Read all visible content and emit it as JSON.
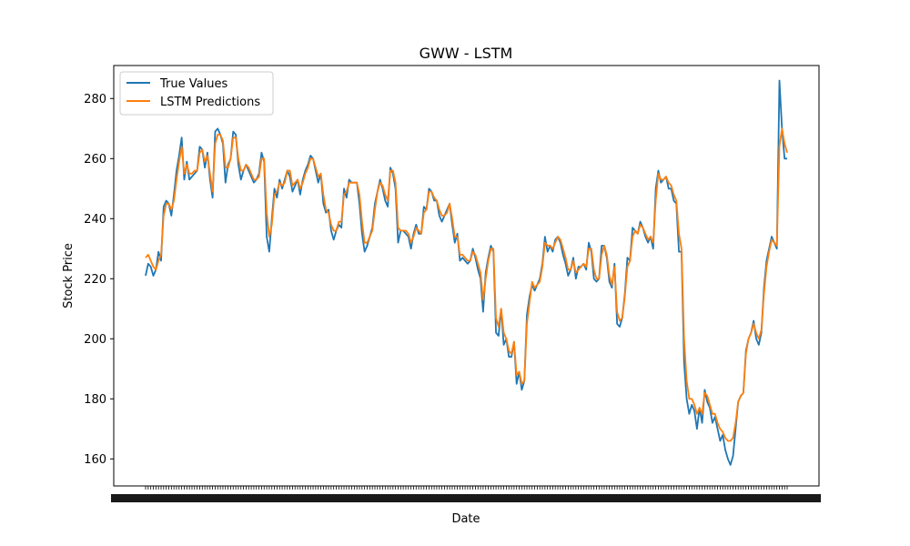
{
  "chart_data": {
    "type": "line",
    "title": "GWW - LSTM",
    "xlabel": "Date",
    "ylabel": "Stock Price",
    "ylim": [
      151,
      291
    ],
    "yticks": [
      160,
      180,
      200,
      220,
      240,
      260,
      280
    ],
    "grid": false,
    "legend_position": "top-left",
    "x_tick_labels": "dense unreadable date labels",
    "series": [
      {
        "name": "True Values",
        "color": "#1f77b4",
        "values": [
          221,
          225,
          224,
          221,
          223,
          229,
          226,
          244,
          246,
          245,
          241,
          248,
          256,
          261,
          267,
          253,
          259,
          253,
          254,
          255,
          256,
          264,
          263,
          257,
          262,
          253,
          247,
          269,
          270,
          268,
          265,
          252,
          258,
          260,
          269,
          268,
          258,
          253,
          256,
          258,
          256,
          254,
          252,
          253,
          255,
          262,
          259,
          234,
          229,
          240,
          250,
          247,
          253,
          250,
          253,
          256,
          254,
          249,
          251,
          253,
          248,
          253,
          256,
          258,
          261,
          260,
          256,
          252,
          255,
          245,
          242,
          243,
          236,
          233,
          236,
          238,
          237,
          250,
          247,
          253,
          252,
          252,
          252,
          245,
          235,
          229,
          231,
          234,
          237,
          245,
          249,
          253,
          250,
          246,
          244,
          257,
          255,
          250,
          232,
          236,
          236,
          235,
          234,
          230,
          235,
          238,
          235,
          235,
          244,
          243,
          250,
          249,
          246,
          246,
          241,
          239,
          241,
          243,
          245,
          238,
          232,
          235,
          226,
          227,
          226,
          225,
          226,
          230,
          227,
          223,
          220,
          209,
          222,
          227,
          231,
          229,
          202,
          201,
          210,
          198,
          200,
          194,
          194,
          199,
          185,
          189,
          183,
          186,
          208,
          214,
          218,
          216,
          218,
          220,
          225,
          234,
          229,
          231,
          229,
          233,
          234,
          232,
          228,
          225,
          221,
          223,
          227,
          220,
          224,
          224,
          225,
          223,
          232,
          229,
          220,
          219,
          220,
          231,
          231,
          227,
          219,
          217,
          225,
          205,
          204,
          207,
          215,
          227,
          226,
          237,
          236,
          235,
          239,
          237,
          234,
          232,
          234,
          230,
          250,
          256,
          252,
          253,
          254,
          250,
          250,
          246,
          245,
          229,
          229,
          192,
          180,
          175,
          178,
          176,
          170,
          177,
          172,
          183,
          179,
          177,
          172,
          174,
          170,
          166,
          168,
          163,
          160,
          158,
          161,
          170,
          179,
          181,
          182,
          196,
          200,
          202,
          206,
          200,
          198,
          202,
          217,
          226,
          230,
          234,
          232,
          230,
          286,
          270,
          260,
          260
        ]
      },
      {
        "name": "LSTM Predictions",
        "color": "#ff7f0e",
        "values": [
          227,
          228,
          226,
          224,
          223,
          226,
          228,
          241,
          245,
          245,
          243,
          246,
          253,
          259,
          264,
          255,
          258,
          255,
          255,
          256,
          256,
          262,
          263,
          259,
          261,
          255,
          249,
          265,
          268,
          268,
          266,
          257,
          257,
          260,
          267,
          267,
          260,
          256,
          256,
          258,
          257,
          255,
          253,
          253,
          254,
          260,
          260,
          242,
          234,
          238,
          248,
          249,
          252,
          251,
          252,
          256,
          256,
          251,
          252,
          253,
          250,
          252,
          255,
          257,
          260,
          260,
          257,
          254,
          255,
          248,
          243,
          242,
          238,
          236,
          236,
          239,
          239,
          248,
          249,
          252,
          252,
          252,
          252,
          248,
          239,
          232,
          232,
          234,
          236,
          243,
          249,
          252,
          251,
          248,
          246,
          256,
          256,
          252,
          237,
          236,
          236,
          236,
          235,
          232,
          234,
          237,
          236,
          235,
          242,
          243,
          249,
          249,
          247,
          246,
          243,
          241,
          241,
          242,
          245,
          240,
          234,
          234,
          228,
          228,
          227,
          226,
          226,
          229,
          228,
          225,
          222,
          213,
          220,
          226,
          230,
          230,
          207,
          204,
          210,
          202,
          200,
          196,
          195,
          199,
          188,
          189,
          185,
          186,
          205,
          212,
          219,
          217,
          218,
          219,
          224,
          232,
          231,
          231,
          230,
          232,
          234,
          233,
          230,
          227,
          223,
          223,
          226,
          222,
          223,
          224,
          225,
          224,
          230,
          230,
          223,
          220,
          220,
          228,
          231,
          228,
          221,
          218,
          224,
          209,
          206,
          207,
          214,
          224,
          226,
          234,
          236,
          235,
          238,
          237,
          235,
          233,
          234,
          232,
          246,
          255,
          253,
          253,
          254,
          252,
          251,
          248,
          246,
          235,
          230,
          200,
          186,
          180,
          180,
          178,
          175,
          177,
          175,
          182,
          181,
          178,
          175,
          175,
          172,
          170,
          169,
          167,
          166,
          166,
          167,
          172,
          179,
          181,
          182,
          195,
          200,
          202,
          205,
          202,
          200,
          203,
          215,
          224,
          229,
          233,
          232,
          231,
          264,
          270,
          265,
          262
        ]
      }
    ]
  }
}
